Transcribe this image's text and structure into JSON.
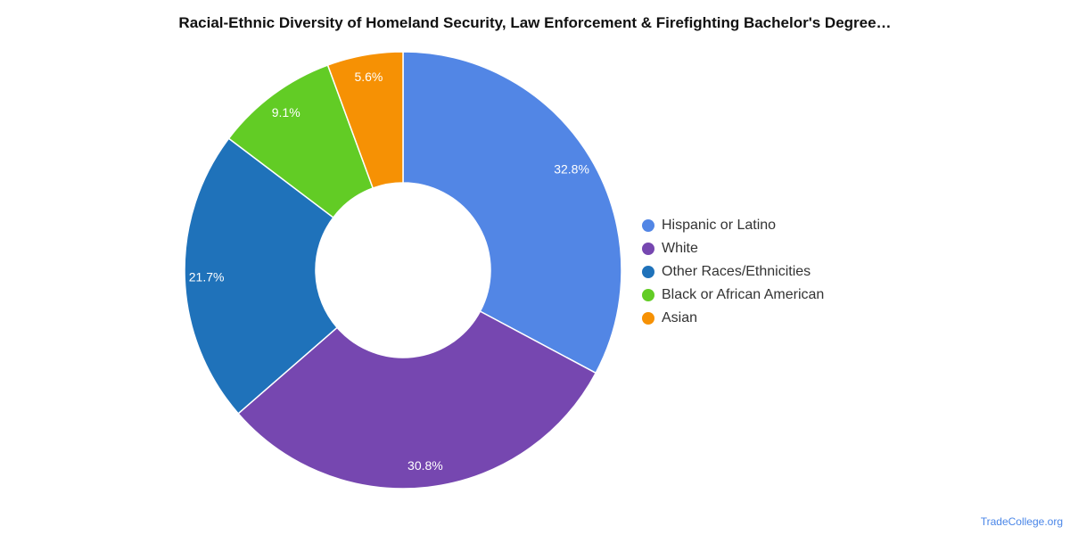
{
  "chart_data": {
    "type": "pie",
    "title": "Racial-Ethnic Diversity of Homeland Security, Law Enforcement & Firefighting Bachelor's Degree…",
    "donut": true,
    "legend_position": "right",
    "slices": [
      {
        "label": "Hispanic or Latino",
        "value": 32.8,
        "display": "32.8%",
        "color": "#5286e5"
      },
      {
        "label": "White",
        "value": 30.8,
        "display": "30.8%",
        "color": "#7647b0"
      },
      {
        "label": "Other Races/Ethnicities",
        "value": 21.7,
        "display": "21.7%",
        "color": "#1f72ba"
      },
      {
        "label": "Black or African American",
        "value": 9.1,
        "display": "9.1%",
        "color": "#62cc25"
      },
      {
        "label": "Asian",
        "value": 5.6,
        "display": "5.6%",
        "color": "#f69104"
      }
    ]
  },
  "footer": {
    "source": "TradeCollege.org"
  }
}
